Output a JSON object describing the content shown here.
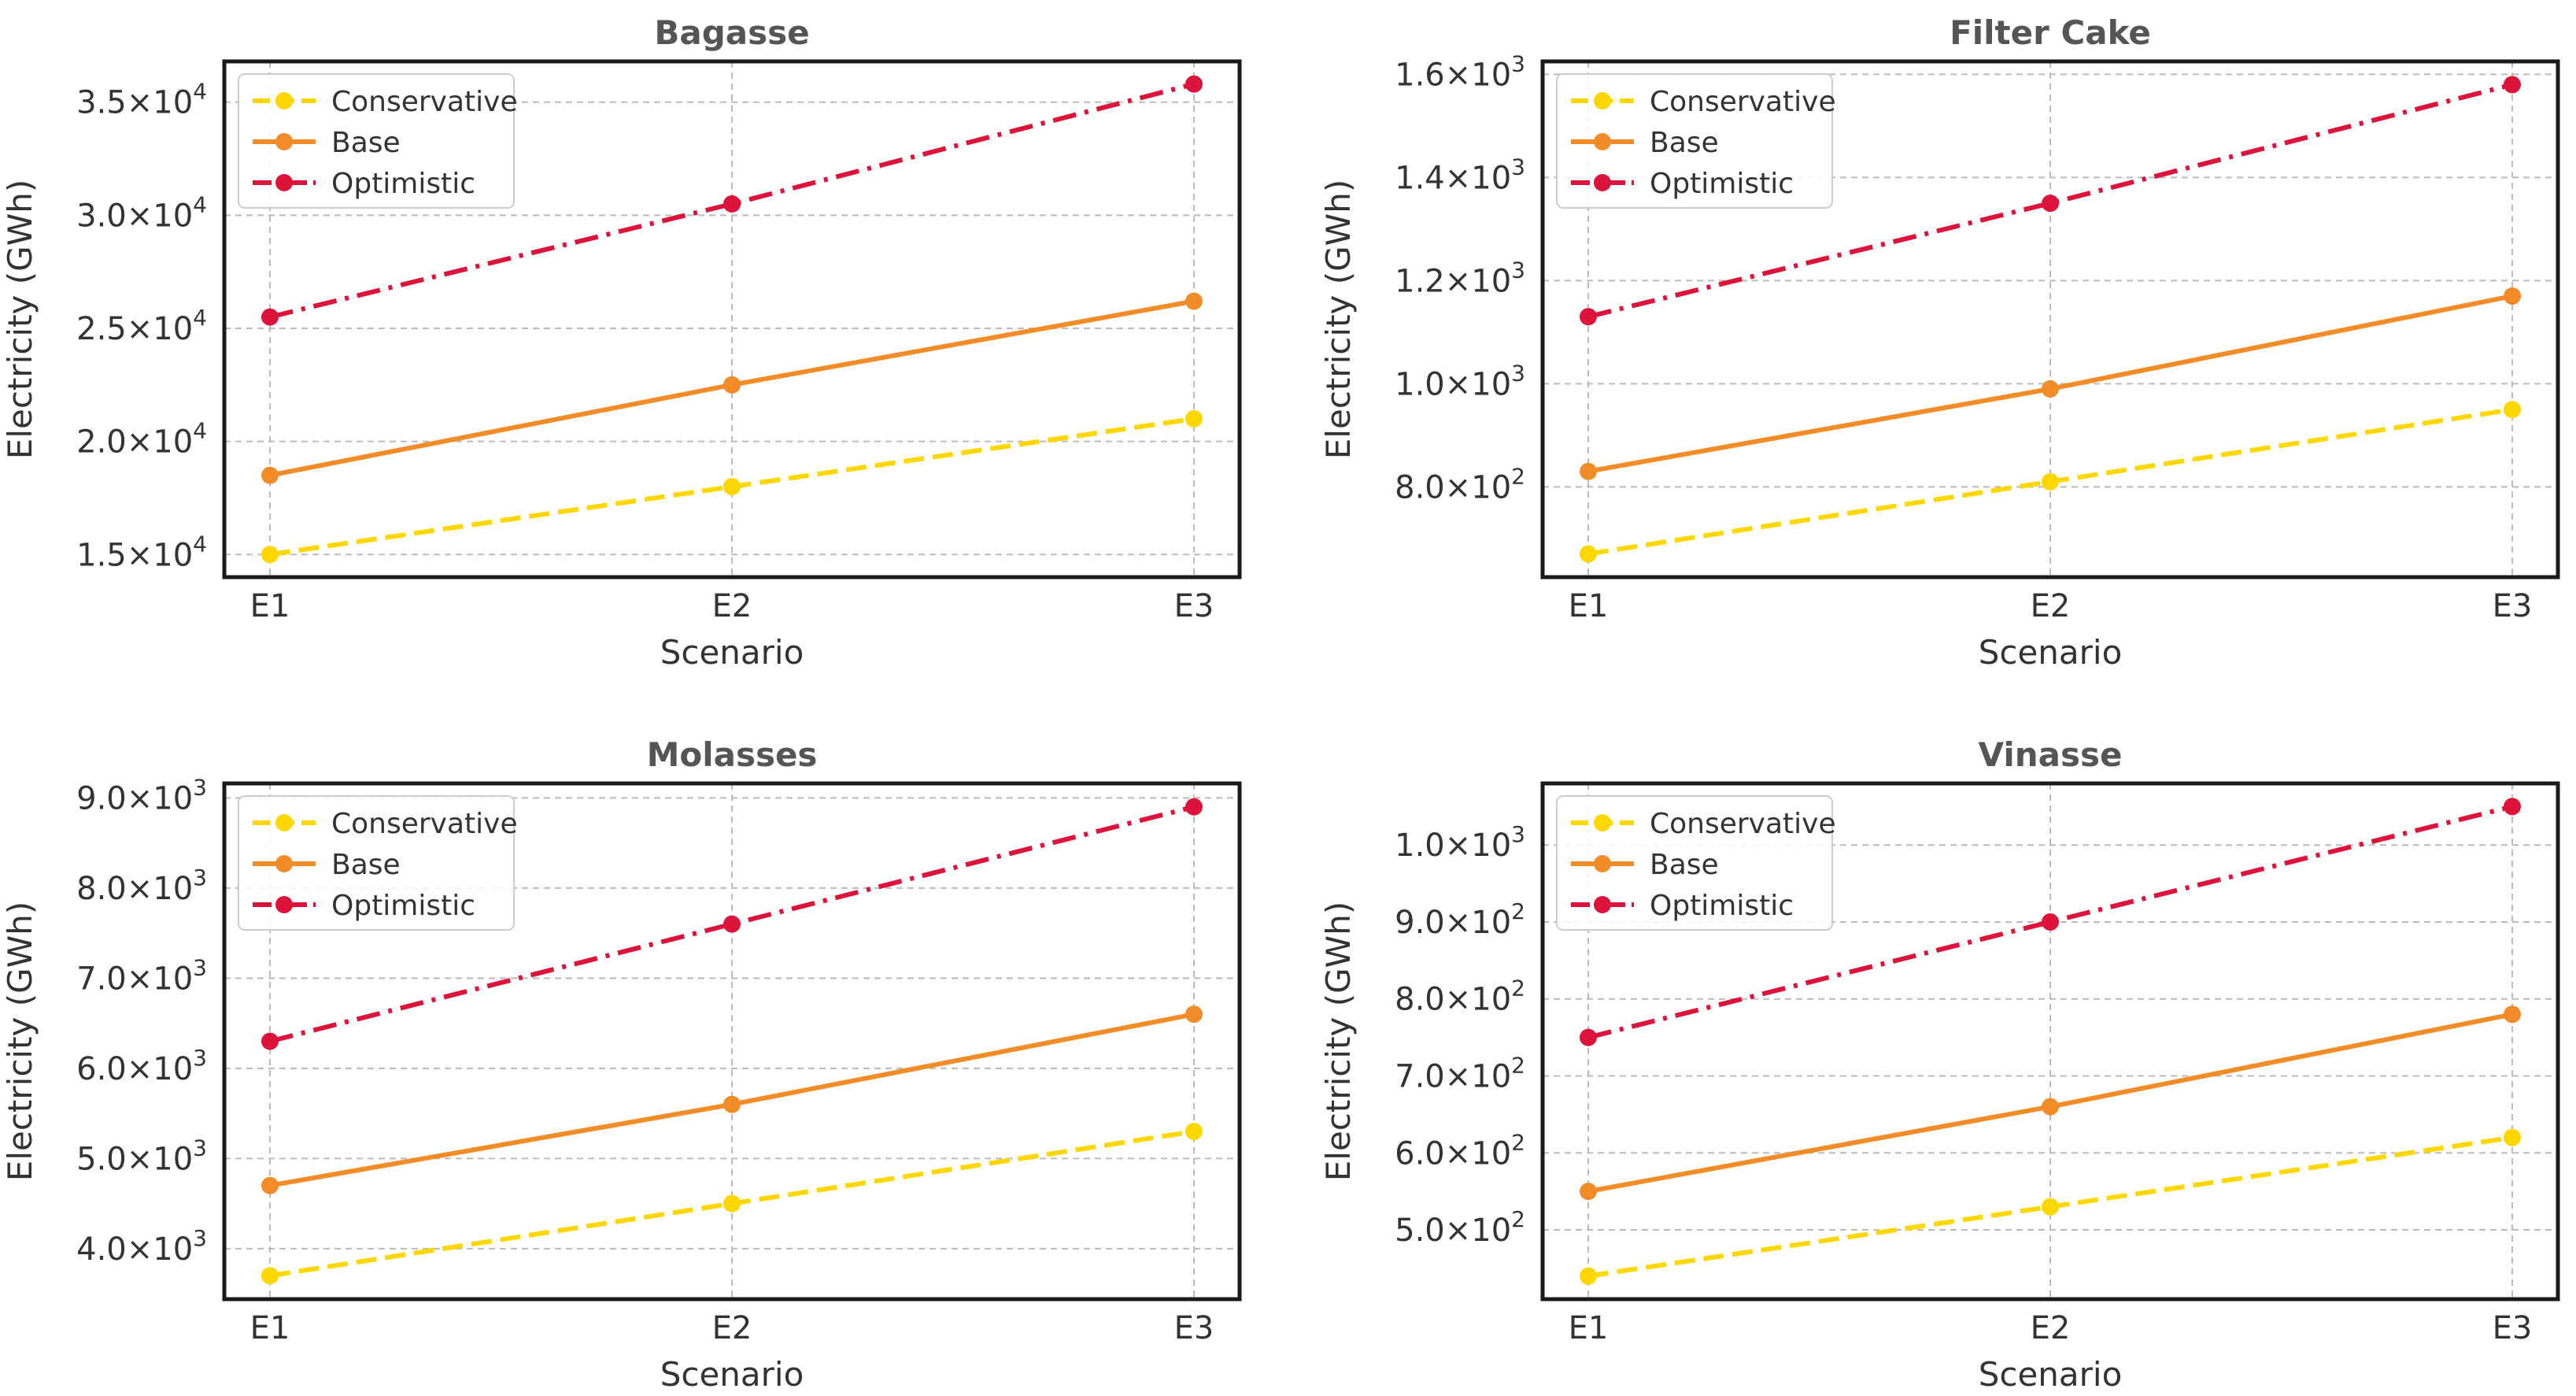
{
  "chart_data": [
    {
      "type": "line",
      "title": "Bagasse",
      "xlabel": "Scenario",
      "ylabel": "Electricity (GWh)",
      "categories": [
        "E1",
        "E2",
        "E3"
      ],
      "series": [
        {
          "name": "Conservative",
          "values": [
            15000,
            18000,
            21000
          ],
          "color": "#FFD700",
          "dash": "dashed"
        },
        {
          "name": "Base",
          "values": [
            18500,
            22500,
            26200
          ],
          "color": "#F28C28",
          "dash": "solid"
        },
        {
          "name": "Optimistic",
          "values": [
            25500,
            30500,
            35800
          ],
          "color": "#DC143C",
          "dash": "dashdot"
        }
      ],
      "ylim": [
        14000,
        36800
      ],
      "yticks": [
        {
          "value": 15000,
          "mantissa": "1.5",
          "exponent": "4"
        },
        {
          "value": 20000,
          "mantissa": "2.0",
          "exponent": "4"
        },
        {
          "value": 25000,
          "mantissa": "2.5",
          "exponent": "4"
        },
        {
          "value": 30000,
          "mantissa": "3.0",
          "exponent": "4"
        },
        {
          "value": 35000,
          "mantissa": "3.5",
          "exponent": "4"
        }
      ],
      "grid": true,
      "legend_position": "top-left"
    },
    {
      "type": "line",
      "title": "Filter Cake",
      "xlabel": "Scenario",
      "ylabel": "Electricity (GWh)",
      "categories": [
        "E1",
        "E2",
        "E3"
      ],
      "series": [
        {
          "name": "Conservative",
          "values": [
            670,
            810,
            950
          ],
          "color": "#FFD700",
          "dash": "dashed"
        },
        {
          "name": "Base",
          "values": [
            830,
            990,
            1170
          ],
          "color": "#F28C28",
          "dash": "solid"
        },
        {
          "name": "Optimistic",
          "values": [
            1130,
            1350,
            1580
          ],
          "color": "#DC143C",
          "dash": "dashdot"
        }
      ],
      "ylim": [
        625,
        1625
      ],
      "yticks": [
        {
          "value": 800,
          "mantissa": "8.0",
          "exponent": "2"
        },
        {
          "value": 1000,
          "mantissa": "1.0",
          "exponent": "3"
        },
        {
          "value": 1200,
          "mantissa": "1.2",
          "exponent": "3"
        },
        {
          "value": 1400,
          "mantissa": "1.4",
          "exponent": "3"
        },
        {
          "value": 1600,
          "mantissa": "1.6",
          "exponent": "3"
        }
      ],
      "grid": true,
      "legend_position": "top-left"
    },
    {
      "type": "line",
      "title": "Molasses",
      "xlabel": "Scenario",
      "ylabel": "Electricity (GWh)",
      "categories": [
        "E1",
        "E2",
        "E3"
      ],
      "series": [
        {
          "name": "Conservative",
          "values": [
            3700,
            4500,
            5300
          ],
          "color": "#FFD700",
          "dash": "dashed"
        },
        {
          "name": "Base",
          "values": [
            4700,
            5600,
            6600
          ],
          "color": "#F28C28",
          "dash": "solid"
        },
        {
          "name": "Optimistic",
          "values": [
            6300,
            7600,
            8900
          ],
          "color": "#DC143C",
          "dash": "dashdot"
        }
      ],
      "ylim": [
        3440,
        9160
      ],
      "yticks": [
        {
          "value": 4000,
          "mantissa": "4.0",
          "exponent": "3"
        },
        {
          "value": 5000,
          "mantissa": "5.0",
          "exponent": "3"
        },
        {
          "value": 6000,
          "mantissa": "6.0",
          "exponent": "3"
        },
        {
          "value": 7000,
          "mantissa": "7.0",
          "exponent": "3"
        },
        {
          "value": 8000,
          "mantissa": "8.0",
          "exponent": "3"
        },
        {
          "value": 9000,
          "mantissa": "9.0",
          "exponent": "3"
        }
      ],
      "grid": true,
      "legend_position": "top-left"
    },
    {
      "type": "line",
      "title": "Vinasse",
      "xlabel": "Scenario",
      "ylabel": "Electricity (GWh)",
      "categories": [
        "E1",
        "E2",
        "E3"
      ],
      "series": [
        {
          "name": "Conservative",
          "values": [
            440,
            530,
            620
          ],
          "color": "#FFD700",
          "dash": "dashed"
        },
        {
          "name": "Base",
          "values": [
            550,
            660,
            780
          ],
          "color": "#F28C28",
          "dash": "solid"
        },
        {
          "name": "Optimistic",
          "values": [
            750,
            900,
            1050
          ],
          "color": "#DC143C",
          "dash": "dashdot"
        }
      ],
      "ylim": [
        410,
        1080
      ],
      "yticks": [
        {
          "value": 500,
          "mantissa": "5.0",
          "exponent": "2"
        },
        {
          "value": 600,
          "mantissa": "6.0",
          "exponent": "2"
        },
        {
          "value": 700,
          "mantissa": "7.0",
          "exponent": "2"
        },
        {
          "value": 800,
          "mantissa": "8.0",
          "exponent": "2"
        },
        {
          "value": 900,
          "mantissa": "9.0",
          "exponent": "2"
        },
        {
          "value": 1000,
          "mantissa": "1.0",
          "exponent": "3"
        }
      ],
      "grid": true,
      "legend_position": "top-left"
    }
  ]
}
